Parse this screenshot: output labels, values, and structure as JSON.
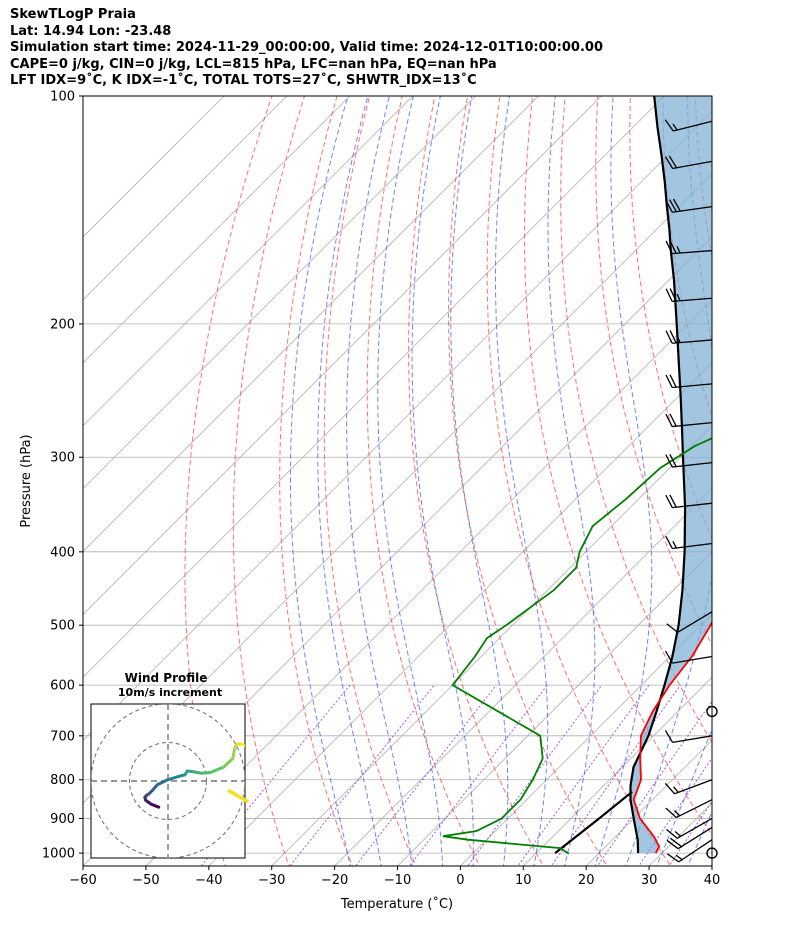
{
  "header": {
    "title_line_1": "SkewTLogP Praia",
    "title_line_2": "Lat: 14.94   Lon: -23.48",
    "title_line_3": "Simulation start time: 2024-11-29_00:00:00, Valid time: 2024-12-01T10:00:00.00",
    "title_line_4": "CAPE=0 j/kg, CIN=0 j/kg, LCL=815 hPa, LFC=nan hPa, EQ=nan hPa",
    "title_line_5": "LFT IDX=9˚C, K IDX=-1˚C, TOTAL TOTS=27˚C, SHWTR_IDX=13˚C"
  },
  "chart_data": [
    {
      "type": "line",
      "subtype": "skewt-logp",
      "xlabel": "Temperature (˚C)",
      "ylabel": "Pressure (hPa)",
      "xlim": [
        -60,
        40
      ],
      "ylim": [
        1040,
        100
      ],
      "y_scale": "log",
      "x_ticks": [
        "−60",
        "−50",
        "−40",
        "−30",
        "−20",
        "−10",
        "0",
        "10",
        "20",
        "30",
        "40"
      ],
      "y_ticks": [
        1000,
        900,
        800,
        700,
        600,
        500,
        400,
        300,
        200,
        100
      ],
      "grid": true,
      "series": [
        {
          "role": "temperature",
          "color": "#ff0000",
          "points": [
            [
              29,
              1000
            ],
            [
              28.5,
              980
            ],
            [
              26,
              950
            ],
            [
              21,
              900
            ],
            [
              17,
              850
            ],
            [
              15,
              800
            ],
            [
              11.5,
              750
            ],
            [
              8,
              700
            ],
            [
              6,
              650
            ],
            [
              4.5,
              600
            ],
            [
              3.5,
              550
            ],
            [
              1.5,
              500
            ],
            [
              -1.5,
              450
            ],
            [
              -4,
              400
            ],
            [
              -7,
              350
            ],
            [
              -10.5,
              300
            ],
            [
              -14,
              275
            ],
            [
              -15.5,
              250
            ],
            [
              -20,
              225
            ],
            [
              -24,
              200
            ],
            [
              -29,
              175
            ],
            [
              -32,
              160
            ],
            [
              -35,
              150
            ],
            [
              -38,
              142
            ],
            [
              -38,
              135
            ],
            [
              -34.5,
              125
            ],
            [
              -31,
              115
            ],
            [
              -27,
              107
            ],
            [
              -26,
              100
            ]
          ]
        },
        {
          "role": "dewpoint",
          "color": "#008000",
          "points": [
            [
              15.3,
              1002
            ],
            [
              13,
              985
            ],
            [
              -3,
              960
            ],
            [
              -7.5,
              950
            ],
            [
              -3,
              935
            ],
            [
              -1,
              900
            ],
            [
              -1,
              850
            ],
            [
              -2.2,
              800
            ],
            [
              -4,
              750
            ],
            [
              -8,
              700
            ],
            [
              -30,
              600
            ],
            [
              -31,
              550
            ],
            [
              -32,
              520
            ],
            [
              -31,
              500
            ],
            [
              -29,
              450
            ],
            [
              -29,
              420
            ],
            [
              -31,
              400
            ],
            [
              -33,
              370
            ],
            [
              -32,
              340
            ],
            [
              -31.5,
              310
            ],
            [
              -29.5,
              290
            ],
            [
              -25,
              270
            ],
            [
              -24,
              250
            ],
            [
              -24,
              230
            ],
            [
              -26,
              215
            ],
            [
              -27.5,
              200
            ],
            [
              -33,
              175
            ],
            [
              -39,
              155
            ],
            [
              -39,
              135
            ],
            [
              -37,
              118
            ],
            [
              -33,
              108
            ],
            [
              -30,
              100
            ]
          ]
        },
        {
          "role": "parcel",
          "color": "#000000",
          "points": [
            [
              26.2,
              1000
            ],
            [
              24,
              960
            ],
            [
              20,
              900
            ],
            [
              16.5,
              850
            ],
            [
              14.3,
              815
            ],
            [
              11.8,
              770
            ],
            [
              9.2,
              700
            ],
            [
              6.6,
              650
            ],
            [
              3.7,
              600
            ],
            [
              0.4,
              550
            ],
            [
              -3.6,
              500
            ],
            [
              -8.5,
              450
            ],
            [
              -14.3,
              400
            ],
            [
              -21.2,
              350
            ],
            [
              -29.6,
              300
            ],
            [
              -34.3,
              275
            ],
            [
              -39.5,
              250
            ],
            [
              -45.3,
              225
            ],
            [
              -51.8,
              200
            ],
            [
              -59.2,
              175
            ],
            [
              -64.4,
              160
            ],
            [
              -68,
              150
            ],
            [
              -72,
              140
            ],
            [
              -76.2,
              130
            ],
            [
              -80.9,
              120
            ],
            [
              -86.1,
              110
            ],
            [
              -91.6,
              100
            ]
          ]
        },
        {
          "role": "parcel-dry-segment",
          "color": "#000000",
          "points": [
            [
              13,
              1000
            ],
            [
              14.5,
              900
            ],
            [
              15.5,
              830
            ]
          ]
        }
      ],
      "wind_barbs": [
        {
          "p": 1000,
          "u": 0,
          "v": 0
        },
        {
          "p": 960,
          "u": -6,
          "v": -4
        },
        {
          "p": 925,
          "u": -8,
          "v": -5
        },
        {
          "p": 900,
          "u": -7,
          "v": -4
        },
        {
          "p": 850,
          "u": -6,
          "v": -3
        },
        {
          "p": 800,
          "u": -8,
          "v": -3
        },
        {
          "p": 700,
          "u": -6,
          "v": -1
        },
        {
          "p": 650,
          "u": 0,
          "v": 0
        },
        {
          "p": 550,
          "u": -6,
          "v": -1
        },
        {
          "p": 480,
          "u": -5,
          "v": -3
        },
        {
          "p": 390,
          "u": -8,
          "v": -1
        },
        {
          "p": 345,
          "u": -9,
          "v": -1
        },
        {
          "p": 305,
          "u": -9,
          "v": -1
        },
        {
          "p": 270,
          "u": -10,
          "v": -1
        },
        {
          "p": 240,
          "u": -11,
          "v": -1
        },
        {
          "p": 210,
          "u": -12,
          "v": -1
        },
        {
          "p": 185,
          "u": -13,
          "v": -1
        },
        {
          "p": 160,
          "u": -13,
          "v": -1
        },
        {
          "p": 140,
          "u": -14,
          "v": -2
        },
        {
          "p": 122,
          "u": -11,
          "v": -2
        },
        {
          "p": 108,
          "u": -8,
          "v": -2
        }
      ]
    },
    {
      "type": "line",
      "subtype": "hodograph",
      "title": "Wind Profile",
      "subtitle": "10m/s increment",
      "axes_x": [
        -10,
        10
      ],
      "axes_y": [
        -10,
        10
      ],
      "rings": [
        5,
        10,
        15
      ],
      "colormap": "viridis",
      "points": [
        [
          -1.2,
          -3.4
        ],
        [
          -2.2,
          -3.0
        ],
        [
          -2.9,
          -2.5
        ],
        [
          -3.0,
          -2.1
        ],
        [
          -2.7,
          -1.8
        ],
        [
          -2.5,
          -1.7
        ],
        [
          -2.0,
          -1.2
        ],
        [
          -1.4,
          -0.5
        ],
        [
          -0.2,
          0.1
        ],
        [
          1.4,
          0.6
        ],
        [
          2.2,
          0.8
        ],
        [
          2.5,
          1.3
        ],
        [
          3.3,
          1.2
        ],
        [
          4.4,
          1.0
        ],
        [
          5.5,
          1.1
        ],
        [
          7.2,
          1.8
        ],
        [
          8.4,
          2.9
        ],
        [
          8.7,
          4.4
        ],
        [
          9.0,
          4.8
        ],
        [
          9.6,
          4.8
        ],
        [
          10.3,
          4.4
        ]
      ],
      "extra_segment": [
        [
          7.8,
          -1.2
        ],
        [
          10.4,
          -2.7
        ]
      ]
    }
  ]
}
